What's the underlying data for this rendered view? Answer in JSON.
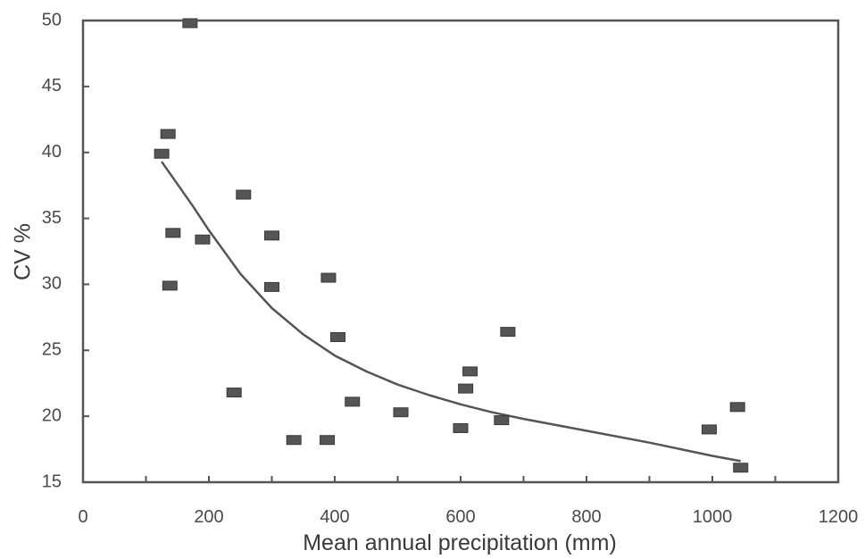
{
  "chart_data": {
    "type": "scatter",
    "title": "",
    "xlabel": "Mean annual precipitation (mm)",
    "ylabel": "CV %",
    "xlim": [
      0,
      1200
    ],
    "ylim": [
      15,
      50
    ],
    "xticks": [
      0,
      200,
      400,
      600,
      800,
      1000,
      1200
    ],
    "yticks": [
      15,
      20,
      25,
      30,
      35,
      40,
      45,
      50
    ],
    "x_minor_step": 100,
    "grid": false,
    "legend": "none",
    "marker_color": "#555555",
    "line_color": "#555555",
    "series": [
      {
        "kind": "points",
        "points": [
          {
            "x": 170,
            "y": 49.8
          },
          {
            "x": 135,
            "y": 41.4
          },
          {
            "x": 125,
            "y": 39.9
          },
          {
            "x": 255,
            "y": 36.8
          },
          {
            "x": 143,
            "y": 33.9
          },
          {
            "x": 190,
            "y": 33.4
          },
          {
            "x": 300,
            "y": 33.7
          },
          {
            "x": 138,
            "y": 29.9
          },
          {
            "x": 300,
            "y": 29.8
          },
          {
            "x": 390,
            "y": 30.5
          },
          {
            "x": 405,
            "y": 26.0
          },
          {
            "x": 675,
            "y": 26.4
          },
          {
            "x": 615,
            "y": 23.4
          },
          {
            "x": 608,
            "y": 22.1
          },
          {
            "x": 240,
            "y": 21.8
          },
          {
            "x": 428,
            "y": 21.1
          },
          {
            "x": 505,
            "y": 20.3
          },
          {
            "x": 665,
            "y": 19.7
          },
          {
            "x": 600,
            "y": 19.1
          },
          {
            "x": 995,
            "y": 19.0
          },
          {
            "x": 1040,
            "y": 20.7
          },
          {
            "x": 335,
            "y": 18.2
          },
          {
            "x": 388,
            "y": 18.2
          },
          {
            "x": 1045,
            "y": 16.1
          }
        ]
      },
      {
        "kind": "trend",
        "points": [
          {
            "x": 125,
            "y": 39.3
          },
          {
            "x": 150,
            "y": 37.6
          },
          {
            "x": 175,
            "y": 35.9
          },
          {
            "x": 200,
            "y": 34.1
          },
          {
            "x": 250,
            "y": 30.8
          },
          {
            "x": 300,
            "y": 28.2
          },
          {
            "x": 350,
            "y": 26.2
          },
          {
            "x": 400,
            "y": 24.6
          },
          {
            "x": 450,
            "y": 23.4
          },
          {
            "x": 500,
            "y": 22.4
          },
          {
            "x": 550,
            "y": 21.6
          },
          {
            "x": 600,
            "y": 20.9
          },
          {
            "x": 650,
            "y": 20.3
          },
          {
            "x": 700,
            "y": 19.8
          },
          {
            "x": 800,
            "y": 18.9
          },
          {
            "x": 900,
            "y": 18.0
          },
          {
            "x": 1000,
            "y": 17.0
          },
          {
            "x": 1045,
            "y": 16.6
          }
        ]
      }
    ]
  }
}
